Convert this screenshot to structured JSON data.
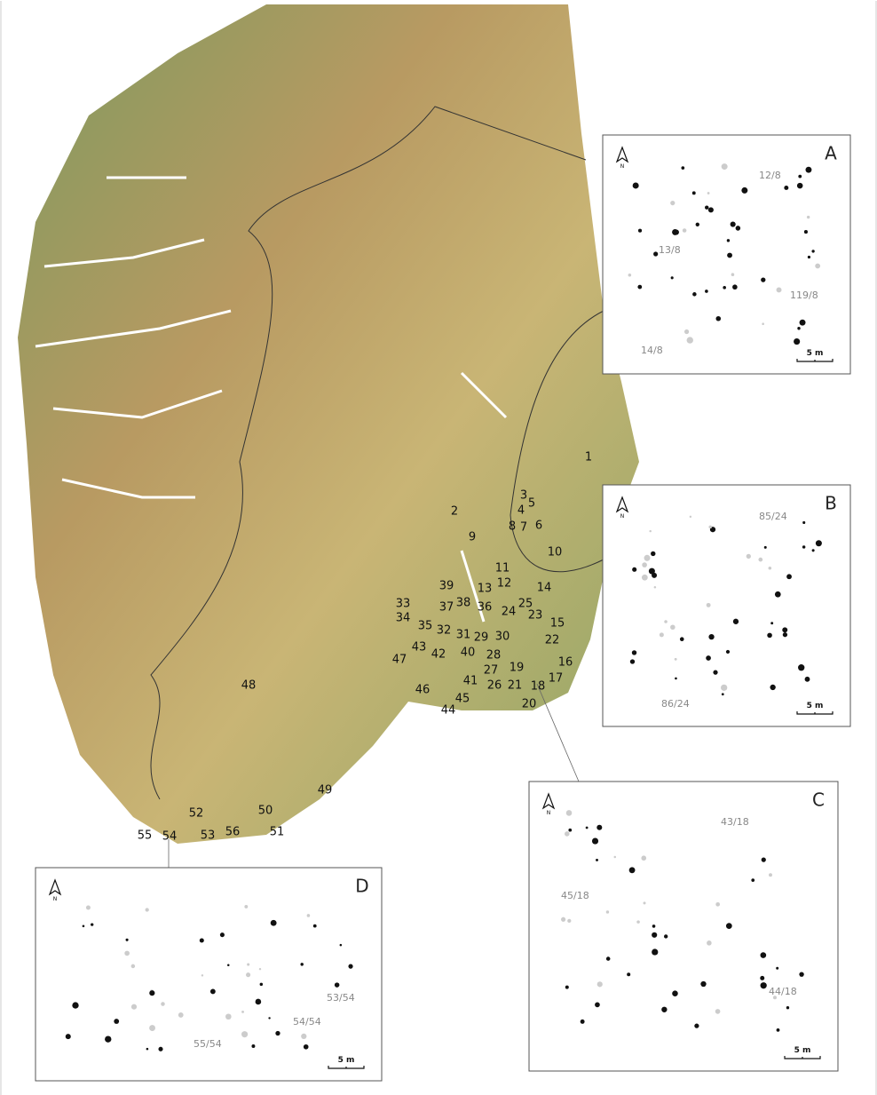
{
  "map": {
    "sites": [
      "1",
      "2",
      "3",
      "4",
      "5",
      "6",
      "7",
      "8",
      "9",
      "10",
      "11",
      "12",
      "13",
      "14",
      "15",
      "16",
      "17",
      "18",
      "19",
      "20",
      "21",
      "22",
      "23",
      "24",
      "25",
      "26",
      "27",
      "28",
      "29",
      "30",
      "31",
      "32",
      "33",
      "34",
      "35",
      "36",
      "37",
      "38",
      "39",
      "40",
      "41",
      "42",
      "43",
      "44",
      "45",
      "46",
      "47",
      "48",
      "49",
      "50",
      "51",
      "52",
      "53",
      "54",
      "55",
      "56"
    ]
  },
  "insets": [
    {
      "letter": "A",
      "north": "N",
      "scale": "5 m",
      "labels": [
        "12/8",
        "13/8",
        "119/8",
        "14/8"
      ]
    },
    {
      "letter": "B",
      "north": "N",
      "scale": "5 m",
      "labels": [
        "85/24",
        "86/24"
      ]
    },
    {
      "letter": "C",
      "north": "N",
      "scale": "5 m",
      "labels": [
        "43/18",
        "45/18",
        "44/18"
      ]
    },
    {
      "letter": "D",
      "north": "N",
      "scale": "5 m",
      "labels": [
        "53/54",
        "54/54",
        "55/54"
      ]
    }
  ]
}
